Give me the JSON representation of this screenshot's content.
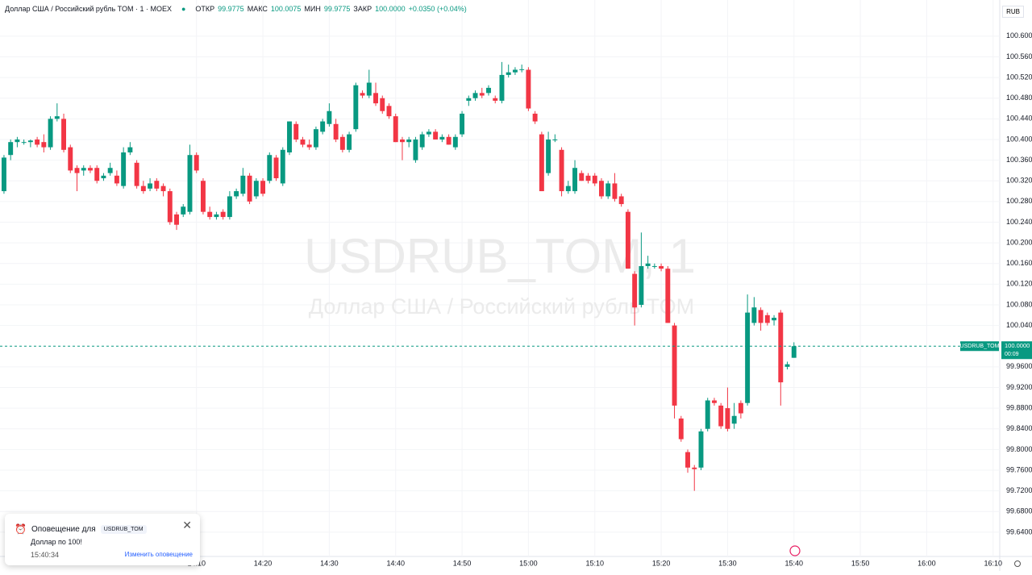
{
  "header": {
    "symbol": "Доллар США / Российский рубль TOM · 1 · MOEX",
    "open_label": "ОТКР",
    "open": "99.9775",
    "high_label": "МАКС",
    "high": "100.0075",
    "low_label": "МИН",
    "low": "99.9775",
    "close_label": "ЗАКР",
    "close": "100.0000",
    "change": "+0.0350 (+0.04%)",
    "currency": "RUB"
  },
  "watermark": {
    "line1": "USDRUB_TOM, 1",
    "line2": "Доллар США / Российский рубль TOM"
  },
  "price_label": {
    "symbol": "USDRUB_TOM",
    "price": {
      "value": 100.0,
      "label": "100.0000"
    },
    "countdown": "00:09"
  },
  "alert": {
    "title": "Оповещение для",
    "symbol": "USDRUB_TOM",
    "message": "Доллар по 100!",
    "time": "15:40:34",
    "edit": "Изменить оповещение"
  },
  "chart_data": {
    "type": "candlestick",
    "up_color": "#089981",
    "down_color": "#f23645",
    "grid": true,
    "xlim": [
      820.4,
      971
    ],
    "ylim": [
      99.593,
      100.67
    ],
    "xticks": [
      {
        "value": 850,
        "label": "14:10"
      },
      {
        "value": 860,
        "label": "14:20"
      },
      {
        "value": 870,
        "label": "14:30"
      },
      {
        "value": 880,
        "label": "14:40"
      },
      {
        "value": 890,
        "label": "14:50"
      },
      {
        "value": 900,
        "label": "15:00"
      },
      {
        "value": 910,
        "label": "15:10"
      },
      {
        "value": 920,
        "label": "15:20"
      },
      {
        "value": 930,
        "label": "15:30"
      },
      {
        "value": 940,
        "label": "15:40"
      },
      {
        "value": 950,
        "label": "15:50"
      },
      {
        "value": 960,
        "label": "16:00"
      },
      {
        "value": 970,
        "label": "16:10"
      }
    ],
    "yticks": [
      {
        "value": 100.6,
        "label": "100.6000"
      },
      {
        "value": 100.56,
        "label": "100.5600"
      },
      {
        "value": 100.52,
        "label": "100.5200"
      },
      {
        "value": 100.48,
        "label": "100.4800"
      },
      {
        "value": 100.44,
        "label": "100.4400"
      },
      {
        "value": 100.4,
        "label": "100.4000"
      },
      {
        "value": 100.36,
        "label": "100.3600"
      },
      {
        "value": 100.32,
        "label": "100.3200"
      },
      {
        "value": 100.28,
        "label": "100.2800"
      },
      {
        "value": 100.24,
        "label": "100.2400"
      },
      {
        "value": 100.2,
        "label": "100.2000"
      },
      {
        "value": 100.16,
        "label": "100.1600"
      },
      {
        "value": 100.12,
        "label": "100.1200"
      },
      {
        "value": 100.08,
        "label": "100.0800"
      },
      {
        "value": 100.04,
        "label": "100.0400"
      },
      {
        "value": 99.96,
        "label": "99.9600"
      },
      {
        "value": 99.92,
        "label": "99.9200"
      },
      {
        "value": 99.88,
        "label": "99.8800"
      },
      {
        "value": 99.84,
        "label": "99.8400"
      },
      {
        "value": 99.8,
        "label": "99.8000"
      },
      {
        "value": 99.76,
        "label": "99.7600"
      },
      {
        "value": 99.72,
        "label": "99.7200"
      },
      {
        "value": 99.68,
        "label": "99.6800"
      },
      {
        "value": 99.64,
        "label": "99.6400"
      }
    ],
    "x": [
      821,
      822,
      823,
      824,
      825,
      826,
      827,
      828,
      829,
      830,
      831,
      832,
      833,
      834,
      835,
      836,
      837,
      838,
      839,
      840,
      841,
      842,
      843,
      844,
      845,
      846,
      847,
      848,
      849,
      850,
      851,
      852,
      853,
      854,
      855,
      856,
      857,
      858,
      859,
      860,
      861,
      862,
      863,
      864,
      865,
      866,
      867,
      868,
      869,
      870,
      871,
      872,
      873,
      874,
      875,
      876,
      877,
      878,
      879,
      880,
      881,
      882,
      883,
      884,
      885,
      886,
      887,
      888,
      889,
      890,
      891,
      892,
      893,
      894,
      895,
      896,
      897,
      898,
      899,
      900,
      901,
      902,
      903,
      904,
      905,
      906,
      907,
      908,
      909,
      910,
      911,
      912,
      913,
      914,
      915,
      916,
      917,
      918,
      919,
      920,
      921,
      922,
      923,
      924,
      925,
      926,
      927,
      928,
      929,
      930,
      931,
      932,
      933,
      934,
      935,
      936,
      937,
      938,
      939,
      940
    ],
    "open": [
      100.3,
      100.37,
      100.395,
      100.395,
      100.395,
      100.4,
      100.395,
      100.385,
      100.44,
      100.44,
      100.385,
      100.345,
      100.34,
      100.345,
      100.345,
      100.325,
      100.335,
      100.33,
      100.31,
      100.375,
      100.355,
      100.31,
      100.305,
      100.32,
      100.31,
      100.3,
      100.255,
      100.255,
      100.26,
      100.37,
      100.32,
      100.26,
      100.25,
      100.26,
      100.25,
      100.29,
      100.295,
      100.33,
      100.29,
      100.32,
      100.32,
      100.365,
      100.315,
      100.375,
      100.43,
      100.4,
      100.39,
      100.385,
      100.415,
      100.43,
      100.43,
      100.405,
      100.38,
      100.42,
      100.49,
      100.485,
      100.49,
      100.48,
      100.465,
      100.445,
      100.4,
      100.395,
      100.36,
      100.385,
      100.41,
      100.415,
      100.4,
      100.405,
      100.385,
      100.41,
      100.475,
      100.48,
      100.49,
      100.49,
      100.48,
      100.475,
      100.525,
      100.53,
      100.535,
      100.535,
      100.45,
      100.41,
      100.335,
      100.4,
      100.38,
      100.3,
      100.3,
      100.335,
      100.33,
      100.33,
      100.32,
      100.29,
      100.315,
      100.29,
      100.26,
      100.14,
      100.08,
      100.155,
      100.155,
      100.155,
      100.15,
      100.04,
      99.86,
      99.795,
      99.765,
      99.765,
      99.84,
      99.895,
      99.885,
      99.88,
      99.85,
      99.89,
      99.89,
      100.045,
      100.07,
      100.06,
      100.05,
      100.065,
      99.96,
      99.9775
    ],
    "high": [
      100.37,
      100.4,
      100.405,
      100.4,
      100.4,
      100.405,
      100.41,
      100.445,
      100.47,
      100.45,
      100.39,
      100.35,
      100.35,
      100.35,
      100.35,
      100.335,
      100.355,
      100.34,
      100.385,
      100.395,
      100.36,
      100.32,
      100.325,
      100.325,
      100.315,
      100.305,
      100.26,
      100.275,
      100.39,
      100.375,
      100.325,
      100.27,
      100.26,
      100.265,
      100.3,
      100.305,
      100.345,
      100.335,
      100.325,
      100.325,
      100.375,
      100.37,
      100.385,
      100.435,
      100.435,
      100.405,
      100.4,
      100.425,
      100.44,
      100.47,
      100.44,
      100.41,
      100.415,
      100.51,
      100.495,
      100.535,
      100.51,
      100.485,
      100.47,
      100.45,
      100.405,
      100.405,
      100.405,
      100.415,
      100.42,
      100.42,
      100.41,
      100.41,
      100.41,
      100.455,
      100.485,
      100.495,
      100.5,
      100.505,
      100.485,
      100.55,
      100.545,
      100.54,
      100.545,
      100.54,
      100.455,
      100.415,
      100.415,
      100.41,
      100.385,
      100.32,
      100.36,
      100.34,
      100.335,
      100.335,
      100.325,
      100.32,
      100.335,
      100.295,
      100.265,
      100.145,
      100.22,
      100.175,
      100.16,
      100.16,
      100.155,
      100.045,
      99.865,
      99.8,
      99.77,
      99.84,
      99.9,
      99.9,
      99.89,
      99.92,
      99.89,
      99.895,
      100.1,
      100.095,
      100.075,
      100.065,
      100.06,
      100.07,
      99.97,
      100.0075
    ],
    "low": [
      100.295,
      100.36,
      100.385,
      100.39,
      100.385,
      100.385,
      100.375,
      100.38,
      100.435,
      100.375,
      100.335,
      100.3,
      100.33,
      100.335,
      100.315,
      100.32,
      100.33,
      100.31,
      100.305,
      100.37,
      100.305,
      100.295,
      100.3,
      100.3,
      100.29,
      100.235,
      100.225,
      100.25,
      100.255,
      100.335,
      100.255,
      100.245,
      100.245,
      100.245,
      100.245,
      100.285,
      100.29,
      100.275,
      100.285,
      100.29,
      100.315,
      100.32,
      100.31,
      100.37,
      100.395,
      100.385,
      100.38,
      100.38,
      100.41,
      100.425,
      100.395,
      100.375,
      100.375,
      100.415,
      100.48,
      100.48,
      100.465,
      100.45,
      100.44,
      100.395,
      100.36,
      100.385,
      100.355,
      100.38,
      100.405,
      100.4,
      100.395,
      100.39,
      100.38,
      100.405,
      100.465,
      100.475,
      100.48,
      100.485,
      100.47,
      100.47,
      100.52,
      100.525,
      100.53,
      100.455,
      100.43,
      100.3,
      100.33,
      100.395,
      100.29,
      100.295,
      100.295,
      100.32,
      100.315,
      100.31,
      100.285,
      100.285,
      100.28,
      100.27,
      100.15,
      100.04,
      100.075,
      100.15,
      100.15,
      100.145,
      100.045,
      99.86,
      99.815,
      99.755,
      99.72,
      99.76,
      99.835,
      99.885,
      99.84,
      99.835,
      99.84,
      99.86,
      99.885,
      100.04,
      100.03,
      100.04,
      100.04,
      99.885,
      99.955,
      99.9775
    ],
    "close": [
      100.365,
      100.395,
      100.4,
      100.395,
      100.398,
      100.39,
      100.385,
      100.44,
      100.445,
      100.38,
      100.34,
      100.335,
      100.345,
      100.34,
      100.32,
      100.33,
      100.345,
      100.315,
      100.375,
      100.385,
      100.31,
      100.3,
      100.315,
      100.305,
      100.3,
      100.24,
      100.235,
      100.27,
      100.37,
      100.34,
      100.26,
      100.25,
      100.255,
      100.25,
      100.29,
      100.3,
      100.33,
      100.28,
      100.32,
      100.295,
      100.37,
      100.325,
      100.38,
      100.435,
      100.4,
      100.39,
      100.385,
      100.42,
      100.435,
      100.455,
      100.4,
      100.38,
      100.41,
      100.505,
      100.485,
      100.51,
      100.47,
      100.455,
      100.445,
      100.395,
      100.395,
      100.4,
      100.4,
      100.41,
      100.415,
      100.4,
      100.405,
      100.39,
      100.405,
      100.45,
      100.48,
      100.49,
      100.485,
      100.5,
      100.475,
      100.525,
      100.53,
      100.535,
      100.536,
      100.46,
      100.435,
      100.3,
      100.4,
      100.4,
      100.3,
      100.31,
      100.345,
      100.32,
      100.32,
      100.315,
      100.29,
      100.315,
      100.285,
      100.275,
      100.15,
      100.075,
      100.155,
      100.16,
      100.155,
      100.15,
      100.045,
      99.885,
      99.82,
      99.765,
      99.762,
      99.835,
      99.895,
      99.89,
      99.845,
      99.84,
      99.865,
      99.87,
      100.065,
      100.075,
      100.045,
      100.045,
      100.055,
      99.93,
      99.965,
      100.0
    ]
  }
}
